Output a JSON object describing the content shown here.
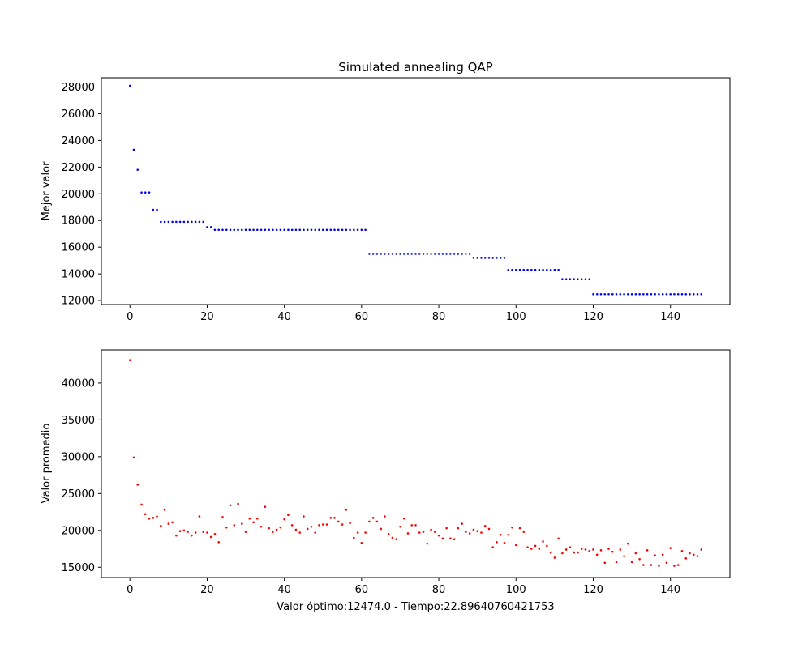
{
  "chart_data": [
    {
      "type": "scatter",
      "title": "Simulated annealing QAP",
      "xlabel": "",
      "ylabel": "Mejor valor",
      "color": "#0000ff",
      "xlim": [
        -7.4,
        155.4
      ],
      "ylim": [
        11700,
        28700
      ],
      "xticks": [
        "0",
        "20",
        "40",
        "60",
        "80",
        "100",
        "120",
        "140"
      ],
      "yticks": [
        "12000",
        "14000",
        "16000",
        "18000",
        "20000",
        "22000",
        "24000",
        "26000",
        "28000"
      ],
      "series": [
        {
          "values": [
            28100,
            23300,
            21800,
            20100,
            20100,
            20100,
            18800,
            18800,
            17900,
            17900,
            17900,
            17900,
            17900,
            17900,
            17900,
            17900,
            17900,
            17900,
            17900,
            17900,
            17500,
            17500,
            17300,
            17300,
            17300,
            17300,
            17300,
            17300,
            17300,
            17300,
            17300,
            17300,
            17300,
            17300,
            17300,
            17300,
            17300,
            17300,
            17300,
            17300,
            17300,
            17300,
            17300,
            17300,
            17300,
            17300,
            17300,
            17300,
            17300,
            17300,
            17300,
            17300,
            17300,
            17300,
            17300,
            17300,
            17300,
            17300,
            17300,
            17300,
            17300,
            17300,
            15500,
            15500,
            15500,
            15500,
            15500,
            15500,
            15500,
            15500,
            15500,
            15500,
            15500,
            15500,
            15500,
            15500,
            15500,
            15500,
            15500,
            15500,
            15500,
            15500,
            15500,
            15500,
            15500,
            15500,
            15500,
            15500,
            15500,
            15200,
            15200,
            15200,
            15200,
            15200,
            15200,
            15200,
            15200,
            15200,
            14300,
            14300,
            14300,
            14300,
            14300,
            14300,
            14300,
            14300,
            14300,
            14300,
            14300,
            14300,
            14300,
            14300,
            13600,
            13600,
            13600,
            13600,
            13600,
            13600,
            13600,
            13600,
            12474,
            12474,
            12474,
            12474,
            12474,
            12474,
            12474,
            12474,
            12474,
            12474,
            12474,
            12474,
            12474,
            12474,
            12474,
            12474,
            12474,
            12474,
            12474,
            12474,
            12474,
            12474,
            12474,
            12474,
            12474,
            12474,
            12474,
            12474,
            12474
          ]
        }
      ]
    },
    {
      "type": "scatter",
      "title": "",
      "xlabel": "Valor óptimo:12474.0 - Tiempo:22.89640760421753",
      "ylabel": "Valor promedio",
      "color": "#ff0000",
      "xlim": [
        -7.4,
        155.4
      ],
      "ylim": [
        13600,
        44500
      ],
      "xticks": [
        "0",
        "20",
        "40",
        "60",
        "80",
        "100",
        "120",
        "140"
      ],
      "yticks": [
        "15000",
        "20000",
        "25000",
        "30000",
        "35000",
        "40000"
      ],
      "series": [
        {
          "values": [
            43100,
            29900,
            26200,
            23500,
            22200,
            21600,
            21700,
            21900,
            20600,
            22800,
            20900,
            21100,
            19300,
            19900,
            20000,
            19800,
            19300,
            19700,
            21900,
            19800,
            19700,
            19100,
            19500,
            18400,
            21800,
            20400,
            23400,
            20700,
            23600,
            20900,
            19800,
            21600,
            21100,
            21600,
            20500,
            23200,
            20300,
            19800,
            20100,
            20400,
            21500,
            22100,
            20700,
            20100,
            19700,
            21900,
            20200,
            20500,
            19700,
            20700,
            20800,
            20800,
            21700,
            21700,
            21200,
            20800,
            22800,
            21000,
            19000,
            19700,
            18300,
            19700,
            21200,
            21700,
            21200,
            20200,
            21900,
            19500,
            19000,
            18800,
            20500,
            21600,
            19600,
            20700,
            20700,
            19700,
            19800,
            18200,
            20100,
            19800,
            19300,
            18900,
            20300,
            18900,
            18800,
            20300,
            20900,
            19800,
            19600,
            20100,
            19900,
            19700,
            20600,
            20200,
            17700,
            18400,
            19400,
            18300,
            19400,
            20400,
            18000,
            20300,
            19800,
            17700,
            17500,
            17900,
            17500,
            18500,
            17900,
            17000,
            16300,
            18900,
            16900,
            17400,
            17700,
            17000,
            17000,
            17500,
            17400,
            17200,
            17400,
            16700,
            17300,
            15600,
            17500,
            17100,
            15700,
            17400,
            16500,
            18200,
            15700,
            16900,
            16100,
            15300,
            17300,
            15300,
            16600,
            15200,
            16700,
            15600,
            17600,
            15200,
            15300,
            17200,
            16200,
            16900,
            16700,
            16500,
            17400
          ]
        }
      ]
    }
  ]
}
